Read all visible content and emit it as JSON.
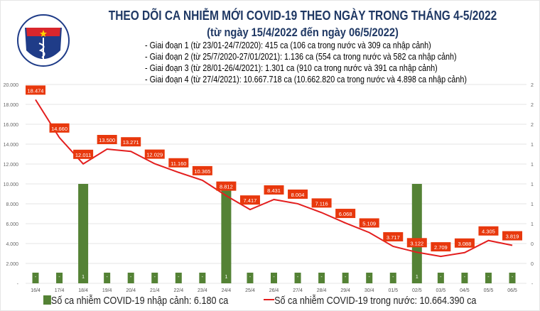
{
  "logo": {
    "text_top": "BỘ Y TẾ",
    "text_bottom": "MINISTRY OF HEALTH"
  },
  "header": {
    "title": "THEO DÕI CA NHIỄM MỚI COVID-19 THEO NGÀY TRONG THÁNG 4-5/2022",
    "subtitle": "(từ ngày 15/4/2022 đến ngày 06/5/2022)",
    "phases": [
      "- Giai đoạn 1 (từ 23/01-24/7/2020): 415 ca (106 ca trong nước và 309 ca nhập cảnh)",
      "- Giai đoạn 2 (từ 25/7/2020-27/01/2021): 1.136 ca (554 ca trong nước và 582 ca nhập cảnh)",
      "- Giai đoạn 3 (từ 28/01-26/4/2021): 1.301 ca (910 ca trong nước và 391 ca nhập cảnh)",
      "- Giai đoạn 4 (từ 27/4/2021): 10.667.718 ca (10.662.820 ca trong nước và 4.898 ca nhập cảnh)"
    ]
  },
  "colors": {
    "bar": "#548235",
    "line": "#e31e1e",
    "label_bg": "#e8380d"
  },
  "chart_data": {
    "type": "bar+line",
    "categories": [
      "16/4",
      "17/4",
      "18/4",
      "19/4",
      "20/4",
      "21/4",
      "22/4",
      "23/4",
      "24/4",
      "25/4",
      "26/4",
      "27/4",
      "28/4",
      "29/4",
      "30/4",
      "01/5",
      "02/5",
      "03/5",
      "04/5",
      "05/5",
      "06/5"
    ],
    "series": [
      {
        "name": "Số ca nhiễm COVID-19 nhập cảnh: 6.180 ca",
        "type": "bar",
        "axis": "right",
        "values": [
          0,
          0,
          1,
          0,
          0,
          0,
          0,
          0,
          1,
          0,
          0,
          0,
          0,
          0,
          0,
          0,
          1,
          0,
          0,
          0,
          0
        ],
        "labels": [
          "-",
          "-",
          "1",
          "-",
          "-",
          "-",
          "-",
          "-",
          "1",
          "-",
          "-",
          "-",
          "-",
          "-",
          "-",
          "-",
          "1",
          "-",
          "-",
          "-",
          "-"
        ]
      },
      {
        "name": "Số ca nhiễm COVID-19 trong nước: 10.664.390 ca",
        "type": "line",
        "axis": "left",
        "values": [
          18474,
          14660,
          12011,
          13500,
          13271,
          12029,
          11160,
          10365,
          8812,
          7417,
          8431,
          8004,
          7116,
          6068,
          5109,
          3717,
          3122,
          2709,
          3088,
          4305,
          3819
        ],
        "labels": [
          "18.474",
          "14.660",
          "12.011",
          "13.500",
          "13.271",
          "12.029",
          "11.160",
          "10.365",
          "8.812",
          "7.417",
          "8.431",
          "8.004",
          "7.116",
          "6.068",
          "5.109",
          "3.717",
          "3.122",
          "2.709",
          "3.088",
          "4.305",
          "3.819"
        ]
      }
    ],
    "left_axis": {
      "ylim": [
        0,
        20000
      ],
      "ticks": [
        "-",
        "2.000",
        "4.000",
        "6.000",
        "8.000",
        "10.000",
        "12.000",
        "14.000",
        "16.000",
        "18.000",
        "20.000"
      ]
    },
    "right_axis": {
      "ylim": [
        0,
        2
      ],
      "ticks": [
        "-",
        "0",
        "0",
        "1",
        "1",
        "1",
        "1",
        "1",
        "2",
        "2",
        "2"
      ]
    },
    "grid": true,
    "legend": "bottom"
  }
}
